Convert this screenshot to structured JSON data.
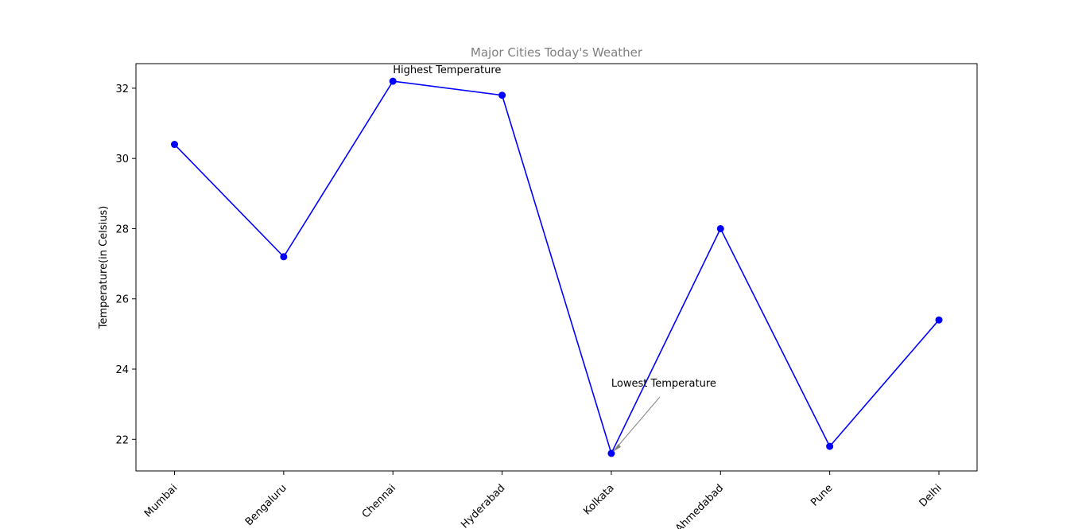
{
  "chart_data": {
    "type": "line",
    "title": "Major Cities Today's Weather",
    "xlabel": "",
    "ylabel": "Temperature(in Celsius)",
    "categories": [
      "Mumbai",
      "Bengaluru",
      "Chennai",
      "Hyderabad",
      "Kolkata",
      "Ahmedabad",
      "Pune",
      "Delhi"
    ],
    "series": [
      {
        "values": [
          30.4,
          27.2,
          32.2,
          31.8,
          21.6,
          28.0,
          21.8,
          25.4
        ]
      }
    ],
    "ylim": [
      21.1,
      32.7
    ],
    "yticks": [
      22,
      24,
      26,
      28,
      30,
      32
    ],
    "grid": false,
    "colors": {
      "line": "#0000ff",
      "marker": "#0000ff",
      "arrow": "#808080",
      "title": "#808080"
    },
    "annotations": [
      {
        "text": "Highest Temperature",
        "category": "Chennai",
        "value": 32.2
      },
      {
        "text": "Lowest Temperature",
        "category": "Kolkata",
        "value": 21.6
      }
    ]
  }
}
